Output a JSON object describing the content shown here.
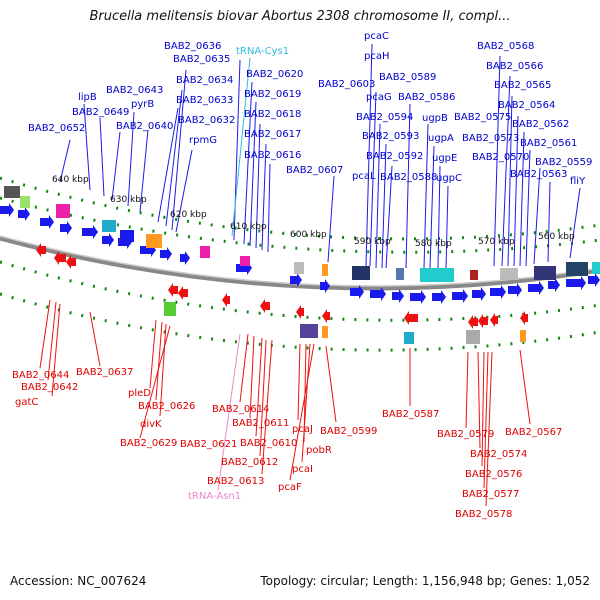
{
  "title": "Brucella melitensis biovar Abortus 2308 chromosome II, compl...",
  "colors": {
    "forward_label": "#0000cc",
    "reverse_label": "#dd0000",
    "trna_forward": "#33bbdd",
    "trna_reverse": "#ee88cc",
    "backbone": "#888888",
    "tick": "#118811"
  },
  "ruler_ticks": [
    "640 kbp",
    "630 kbp",
    "620 kbp",
    "610 kbp",
    "600 kbp",
    "590 kbp",
    "580 kbp",
    "570 kbp",
    "560 kbp"
  ],
  "forward_labels": [
    "BAB2_0636",
    "tRNA-Cys1",
    "BAB2_0635",
    "BAB2_0634",
    "BAB2_0643",
    "lipB",
    "pyrB",
    "BAB2_0649",
    "BAB2_0633",
    "BAB2_0652",
    "BAB2_0640",
    "BAB2_0632",
    "rpmG",
    "BAB2_0620",
    "BAB2_0619",
    "BAB2_0618",
    "BAB2_0617",
    "BAB2_0616",
    "BAB2_0607",
    "BAB2_0603",
    "pcaC",
    "pcaH",
    "BAB2_0589",
    "pcaG",
    "BAB2_0586",
    "BAB2_0594",
    "BAB2_0593",
    "BAB2_0592",
    "pcaL",
    "BAB2_0588",
    "ugpB",
    "ugpA",
    "ugpE",
    "ugpC",
    "BAB2_0568",
    "BAB2_0566",
    "BAB2_0565",
    "BAB2_0564",
    "BAB2_0575",
    "BAB2_0562",
    "BAB2_0573",
    "BAB2_0561",
    "BAB2_0570",
    "BAB2_0559",
    "BAB2_0563",
    "fliY"
  ],
  "reverse_labels": [
    "BAB2_0644",
    "BAB2_0642",
    "gatC",
    "BAB2_0637",
    "pleD",
    "BAB2_0626",
    "divK",
    "BAB2_0629",
    "BAB2_0614",
    "BAB2_0611",
    "BAB2_0621",
    "BAB2_0610",
    "BAB2_0612",
    "BAB2_0613",
    "tRNA-Asn1",
    "pcaJ",
    "pobR",
    "pcaI",
    "pcaF",
    "BAB2_0599",
    "BAB2_0587",
    "BAB2_0579",
    "BAB2_0574",
    "BAB2_0576",
    "BAB2_0577",
    "BAB2_0578",
    "BAB2_0567"
  ],
  "accession": "Accession: NC_007624",
  "stats": "Topology: circular; Length: 1,156,948 bp; Genes: 1,052"
}
